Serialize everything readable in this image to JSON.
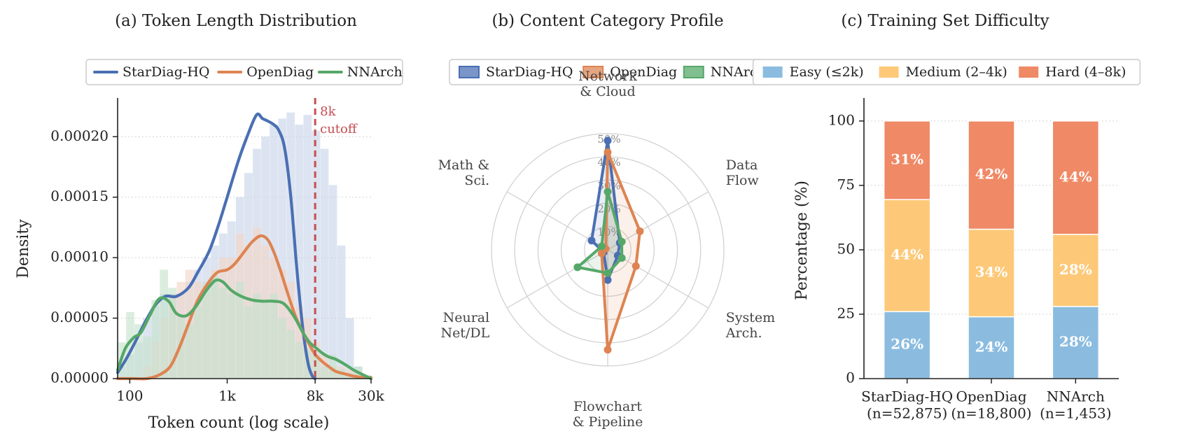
{
  "colors": {
    "starDiag": "#4a6fb3",
    "openDiag": "#dd8452",
    "nnArch": "#55a868",
    "starDiagFill": "#c9d4ea",
    "openDiagFill": "#f3d6c8",
    "nnArchFill": "#c6e3cd",
    "cutoff": "#c44e52",
    "easy": "#8bbce0",
    "medium": "#fdc978",
    "hard": "#ef8966"
  },
  "chart_data": [
    {
      "type": "line",
      "title": "(a) Token Length Distribution",
      "xlabel": "Token count (log scale)",
      "ylabel": "Density",
      "xscale": "log",
      "xlim": [
        75,
        30000
      ],
      "ylim": [
        0,
        0.000232
      ],
      "xticks": [
        {
          "value": 100,
          "label": "100"
        },
        {
          "value": 1000,
          "label": "1k"
        },
        {
          "value": 8000,
          "label": "8k"
        },
        {
          "value": 30000,
          "label": "30k"
        }
      ],
      "yticks": [
        {
          "value": 0,
          "label": "0.00000"
        },
        {
          "value": 5e-05,
          "label": "0.00005"
        },
        {
          "value": 0.0001,
          "label": "0.00010"
        },
        {
          "value": 0.00015,
          "label": "0.00015"
        },
        {
          "value": 0.0002,
          "label": "0.00020"
        }
      ],
      "grid": "y",
      "legend_position": "top-center",
      "annotation": {
        "x": 8000,
        "text_lines": [
          "8k",
          "cutoff"
        ]
      },
      "series": [
        {
          "name": "StarDiag-HQ",
          "x": [
            75,
            90,
            110,
            140,
            180,
            230,
            300,
            400,
            500,
            650,
            800,
            1000,
            1300,
            1600,
            2000,
            2300,
            2600,
            3000,
            3400,
            3900,
            4500,
            5200,
            6000,
            6800,
            7500,
            8000
          ],
          "y": [
            5e-06,
            1.5e-05,
            2.8e-05,
            4.5e-05,
            6e-05,
            6.8e-05,
            6.8e-05,
            7.5e-05,
            8.8e-05,
            0.000105,
            0.000125,
            0.00015,
            0.00018,
            0.0002,
            0.000218,
            0.000215,
            0.000213,
            0.00021,
            0.000205,
            0.00019,
            0.00015,
            9e-05,
            4e-05,
            1.2e-05,
            2e-06,
            0.0
          ],
          "hist": [
            1e-05,
            2e-05,
            3e-05,
            5e-05,
            6e-05,
            7e-05,
            7e-05,
            7e-05,
            8e-05,
            9e-05,
            0.0001,
            0.00011,
            0.00012,
            0.00013,
            0.00015,
            0.00017,
            0.00019,
            0.0002,
            0.00021,
            0.000215,
            0.00022,
            0.00021,
            0.000218,
            0.000205,
            0.00019,
            0.00016,
            0.00011,
            5e-05,
            1e-05,
            0.0
          ]
        },
        {
          "name": "OpenDiag",
          "x": [
            75,
            110,
            150,
            200,
            260,
            320,
            400,
            500,
            650,
            800,
            1000,
            1200,
            1500,
            1800,
            2200,
            2600,
            3000,
            3500,
            4200,
            5000,
            6000,
            7000,
            8000,
            9500,
            11000,
            13000,
            16000,
            20000,
            25000,
            30000
          ],
          "y": [
            0.0,
            0.0,
            0.0,
            3e-06,
            1e-05,
            2.5e-05,
            4.5e-05,
            6.5e-05,
            8e-05,
            8.8e-05,
            9e-05,
            9.5e-05,
            0.000105,
            0.000113,
            0.000118,
            0.000115,
            0.000105,
            9e-05,
            7e-05,
            5.2e-05,
            3.8e-05,
            2.8e-05,
            2e-05,
            1.4e-05,
            1e-05,
            6e-06,
            4e-06,
            2e-06,
            1e-06,
            1e-06
          ],
          "hist": [
            0.0,
            0.0,
            0.0,
            1e-05,
            3e-05,
            5e-05,
            7e-05,
            8e-05,
            9e-05,
            8e-05,
            7e-05,
            9e-05,
            0.0001,
            0.0001,
            0.00012,
            0.00011,
            0.000125,
            0.00011,
            0.0001,
            9e-05,
            8e-05,
            6e-05,
            5e-05,
            3e-05,
            2e-05,
            1e-05,
            1e-05,
            8e-06,
            5e-06,
            3e-06
          ]
        },
        {
          "name": "NNArch",
          "x": [
            75,
            90,
            110,
            130,
            160,
            200,
            250,
            300,
            380,
            480,
            600,
            750,
            900,
            1100,
            1400,
            1800,
            2300,
            3000,
            3800,
            4800,
            6000,
            7000,
            8000,
            9500,
            11000,
            13000,
            16000,
            20000,
            25000,
            30000
          ],
          "y": [
            7e-06,
            2.5e-05,
            3.4e-05,
            3.8e-05,
            5.2e-05,
            6.6e-05,
            6.4e-05,
            5.4e-05,
            5.2e-05,
            6e-05,
            7.2e-05,
            8.1e-05,
            8e-05,
            7.3e-05,
            6.8e-05,
            6.5e-05,
            6.4e-05,
            6.4e-05,
            6.2e-05,
            5.2e-05,
            3.8e-05,
            3e-05,
            2.6e-05,
            2.1e-05,
            1.8e-05,
            1.6e-05,
            1.2e-05,
            7e-06,
            3e-06,
            0.0
          ],
          "hist": [
            3e-05,
            5.5e-05,
            4.5e-05,
            3.5e-05,
            6.5e-05,
            9e-05,
            7.5e-05,
            5e-05,
            4.5e-05,
            6e-05,
            8e-05,
            8.5e-05,
            7.5e-05,
            7e-05,
            8e-05,
            6e-05,
            7e-05,
            6.5e-05,
            7e-05,
            5e-05,
            4e-05,
            3e-05,
            2.5e-05,
            2e-05,
            1e-05,
            2e-05,
            8e-06,
            5e-06,
            1e-05,
            2e-06
          ]
        }
      ]
    },
    {
      "type": "radar",
      "title": "(b) Content Category Profile",
      "axes": [
        "Network\n& Cloud",
        "Data\nFlow",
        "System\nArch.",
        "Flowchart\n& Pipeline",
        "Neural\nNet/DL",
        "Math &\nSci."
      ],
      "rlim": [
        0,
        50
      ],
      "rticks": [
        {
          "value": 10,
          "label": "10%"
        },
        {
          "value": 20,
          "label": "20%"
        },
        {
          "value": 30,
          "label": "30%"
        },
        {
          "value": 40,
          "label": "40%"
        },
        {
          "value": 50,
          "label": "50%"
        }
      ],
      "legend_position": "top-center",
      "series": [
        {
          "name": "StarDiag-HQ",
          "values": [
            47,
            6,
            5,
            13,
            2,
            8
          ]
        },
        {
          "name": "OpenDiag",
          "values": [
            42,
            16,
            14,
            43,
            3,
            1
          ]
        },
        {
          "name": "NNArch",
          "values": [
            25,
            7,
            7,
            10,
            15,
            3
          ]
        }
      ]
    },
    {
      "type": "bar",
      "stacked": true,
      "title": "(c) Training Set Difficulty",
      "ylabel": "Percentage (%)",
      "ylim": [
        0,
        100
      ],
      "yticks": [
        0,
        25,
        50,
        75,
        100
      ],
      "grid": "y",
      "legend_position": "top-center",
      "categories": [
        {
          "lines": [
            "StarDiag-HQ",
            "(n=52,875)"
          ]
        },
        {
          "lines": [
            "OpenDiag",
            "(n=18,800)"
          ]
        },
        {
          "lines": [
            "NNArch",
            "(n=1,453)"
          ]
        }
      ],
      "series": [
        {
          "name": "Easy (≤2k)",
          "values": [
            26,
            24,
            28
          ],
          "labels": [
            "26%",
            "24%",
            "28%"
          ]
        },
        {
          "name": "Medium (2–4k)",
          "values": [
            43.5,
            34,
            28
          ],
          "labels": [
            "44%",
            "34%",
            "28%"
          ]
        },
        {
          "name": "Hard (4–8k)",
          "values": [
            30.5,
            42,
            44
          ],
          "labels": [
            "31%",
            "42%",
            "44%"
          ]
        }
      ]
    }
  ]
}
